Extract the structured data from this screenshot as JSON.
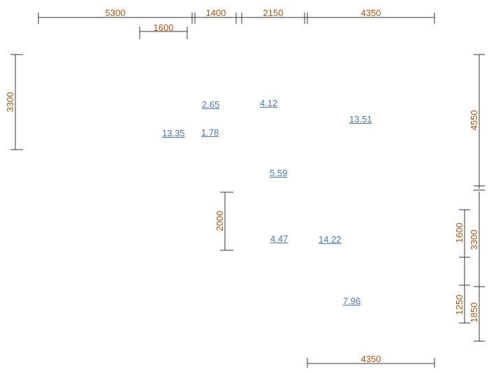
{
  "colors": {
    "dimension_text": "#b4500a",
    "area_link": "#4a72c8",
    "line": "#333333"
  },
  "dimensions": {
    "top_row": [
      "5300",
      "1400",
      "2150",
      "4350"
    ],
    "top_sub": "1600",
    "left": "3300",
    "right_upper": "4550",
    "right_lower": [
      "1600",
      "3300",
      "1250",
      "1850"
    ],
    "middle": "2000",
    "bottom": "4350"
  },
  "areas": [
    "2.65",
    "4.12",
    "13.51",
    "13.35",
    "1.78",
    "5.59",
    "4.47",
    "14.22",
    "7.96"
  ]
}
